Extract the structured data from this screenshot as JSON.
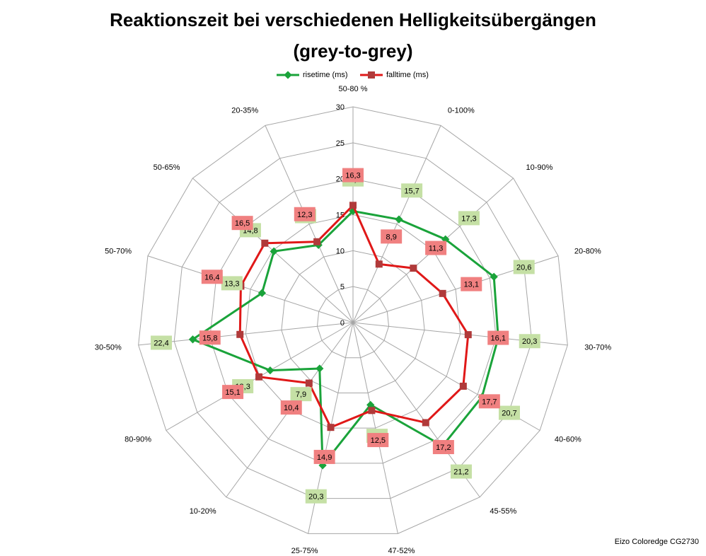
{
  "chart_data": {
    "type": "radar",
    "title": "Reaktionszeit bei verschiedenen Helligkeitsübergängen",
    "subtitle": "(grey-to-grey)",
    "categories": [
      "50-80 %",
      "0-100%",
      "10-90%",
      "20-80%",
      "30-70%",
      "40-60%",
      "45-55%",
      "47-52%",
      "25-75%",
      "10-20%",
      "80-90%",
      "30-50%",
      "50-70%",
      "50-65%",
      "20-35%"
    ],
    "rlim": [
      0,
      30
    ],
    "ticks": [
      "0",
      "5",
      "10",
      "15",
      "20",
      "25",
      "30"
    ],
    "grid": true,
    "legend_position": "top",
    "series": [
      {
        "name": "risetime (ms)",
        "color": "#1aa33a",
        "label_bg": "#c5e0a5",
        "marker": "diamond",
        "values": [
          15.5,
          15.7,
          17.3,
          20.6,
          20.3,
          20.7,
          21.2,
          11.7,
          20.3,
          7.9,
          13.3,
          22.4,
          13.3,
          14.8,
          11.8
        ],
        "labels": [
          "15,5",
          "15,7",
          "17,3",
          "20,6",
          "20,3",
          "20,7",
          "21,2",
          "11,7",
          "20,3",
          "7,9",
          "13,3",
          "22,4",
          "13,3",
          "14,8",
          "11,8"
        ]
      },
      {
        "name": "falltime (ms)",
        "color": "#e01818",
        "label_bg": "#f08080",
        "marker": "square",
        "values": [
          16.3,
          8.9,
          11.3,
          13.1,
          16.1,
          17.7,
          17.2,
          12.5,
          14.9,
          10.4,
          15.1,
          15.8,
          16.4,
          16.5,
          12.3
        ],
        "labels": [
          "16,3",
          "8,9",
          "11,3",
          "13,1",
          "16,1",
          "17,7",
          "17,2",
          "12,5",
          "14,9",
          "10,4",
          "15,1",
          "15,8",
          "16,4",
          "16,5",
          "12,3"
        ]
      }
    ]
  },
  "footer": "Eizo Coloredge CG2730"
}
